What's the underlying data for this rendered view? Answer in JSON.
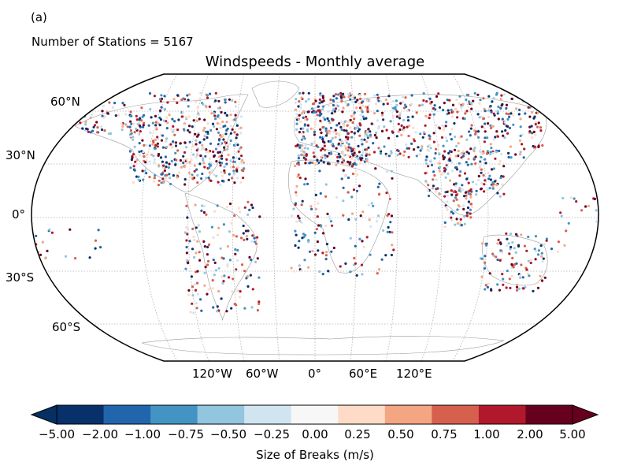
{
  "panel_label": "(a)",
  "station_count_text": "Number of Stations = 5167",
  "title": "Windspeeds - Monthly average",
  "lat_labels": [
    "60°N",
    "30°N",
    "0°",
    "30°S",
    "60°S"
  ],
  "lon_labels": [
    "120°W",
    "60°W",
    "0°",
    "60°E",
    "120°E"
  ],
  "colorbar": {
    "label": "Size of Breaks (m/s)",
    "ticks": [
      "−5.00",
      "−2.00",
      "−1.00",
      "−0.75",
      "−0.50",
      "−0.25",
      "0.00",
      "0.25",
      "0.50",
      "0.75",
      "1.00",
      "2.00",
      "5.00"
    ],
    "colors": [
      "#08306b",
      "#2166ac",
      "#4393c3",
      "#92c5de",
      "#d1e5f0",
      "#f7f7f7",
      "#fddbc7",
      "#f4a582",
      "#d6604d",
      "#b2182b",
      "#67001f"
    ],
    "extend_low_color": "#053061",
    "extend_high_color": "#67001f"
  },
  "projection": "Robinson",
  "point_colors": [
    "#08306b",
    "#2166ac",
    "#4393c3",
    "#92c5de",
    "#d1e5f0",
    "#fddbc7",
    "#f4a582",
    "#d6604d",
    "#b2182b",
    "#67001f"
  ]
}
